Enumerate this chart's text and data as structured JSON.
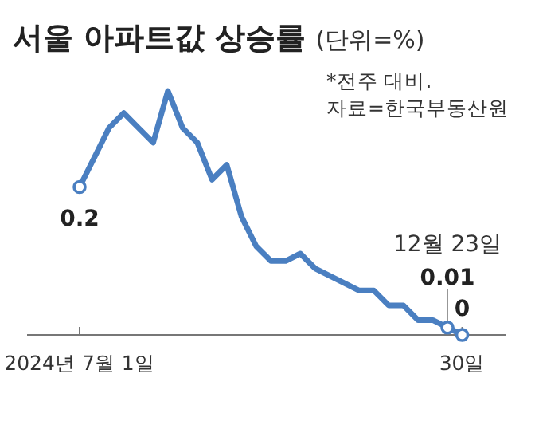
{
  "chart_data": {
    "type": "line",
    "title": "서울 아파트값 상승률",
    "subtitle": "(단위=%)",
    "annotations": [
      "*전주 대비.",
      "자료=한국부동산원",
      "12월 23일"
    ],
    "x": [
      "2024-07-01",
      "2024-07-08",
      "2024-07-15",
      "2024-07-22",
      "2024-07-29",
      "2024-08-05",
      "2024-08-12",
      "2024-08-19",
      "2024-08-26",
      "2024-09-02",
      "2024-09-09",
      "2024-09-16",
      "2024-09-23",
      "2024-09-30",
      "2024-10-07",
      "2024-10-14",
      "2024-10-21",
      "2024-10-28",
      "2024-11-04",
      "2024-11-11",
      "2024-11-18",
      "2024-11-25",
      "2024-12-02",
      "2024-12-09",
      "2024-12-16",
      "2024-12-23",
      "2024-12-30"
    ],
    "series": [
      {
        "color": "#4a7fc1",
        "values": [
          0.2,
          0.24,
          0.28,
          0.3,
          0.28,
          0.26,
          0.33,
          0.28,
          0.26,
          0.21,
          0.23,
          0.16,
          0.12,
          0.1,
          0.1,
          0.11,
          0.09,
          0.08,
          0.07,
          0.06,
          0.06,
          0.04,
          0.04,
          0.02,
          0.02,
          0.01,
          0
        ],
        "value_labels": [
          "0.2",
          null,
          null,
          null,
          null,
          null,
          null,
          null,
          null,
          null,
          null,
          null,
          null,
          null,
          null,
          null,
          null,
          null,
          null,
          null,
          null,
          null,
          null,
          null,
          null,
          "0.01",
          "0"
        ]
      }
    ],
    "xlim": [
      "2024-06-06",
      "2025-01-20"
    ],
    "xticks": [
      {
        "value": "2024-07-01",
        "label": "2024년 7월 1일"
      },
      {
        "value": "2024-12-30",
        "label": "30일"
      }
    ],
    "line_style": "solid"
  }
}
